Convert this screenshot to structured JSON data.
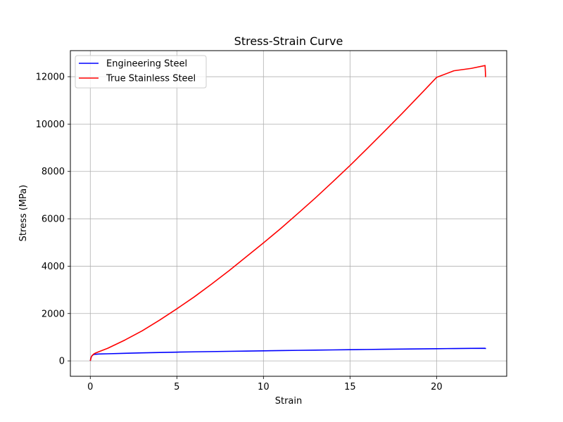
{
  "chart_data": {
    "type": "line",
    "title": "Stress-Strain Curve",
    "xlabel": "Strain",
    "ylabel": "Stress (MPa)",
    "xlim": [
      -1.15,
      24.05
    ],
    "ylim": [
      -650,
      13100
    ],
    "xticks": [
      0,
      5,
      10,
      15,
      20
    ],
    "yticks": [
      0,
      2000,
      4000,
      6000,
      8000,
      10000,
      12000
    ],
    "grid": true,
    "legend_position": "top-left",
    "series": [
      {
        "name": "Engineering Steel",
        "color": "#0000ff",
        "x": [
          0,
          0.05,
          0.1,
          0.2,
          0.3,
          0.5,
          1,
          2,
          3,
          4,
          5,
          6,
          7,
          8,
          9,
          10,
          11,
          12,
          13,
          14,
          15,
          16,
          17,
          18,
          19,
          20,
          21,
          22,
          22.8,
          22.85
        ],
        "y": [
          0,
          150,
          220,
          270,
          280,
          290,
          300,
          320,
          340,
          355,
          370,
          382,
          393,
          404,
          415,
          425,
          435,
          445,
          455,
          464,
          473,
          482,
          491,
          499,
          507,
          515,
          522,
          528,
          532,
          515
        ]
      },
      {
        "name": "True Stainless Steel",
        "color": "#ff0000",
        "x": [
          0,
          0.05,
          0.1,
          0.2,
          0.3,
          0.5,
          1,
          2,
          3,
          4,
          5,
          6,
          7,
          8,
          9,
          10,
          11,
          12,
          13,
          14,
          15,
          16,
          17,
          18,
          19,
          20,
          21,
          22,
          22.8,
          22.82,
          22.83
        ],
        "y": [
          0,
          150,
          220,
          290,
          330,
          390,
          530,
          880,
          1270,
          1720,
          2200,
          2700,
          3240,
          3800,
          4390,
          4980,
          5590,
          6230,
          6880,
          7560,
          8250,
          8970,
          9700,
          10440,
          11200,
          11970,
          12250,
          12350,
          12470,
          12200,
          11980
        ]
      }
    ]
  }
}
